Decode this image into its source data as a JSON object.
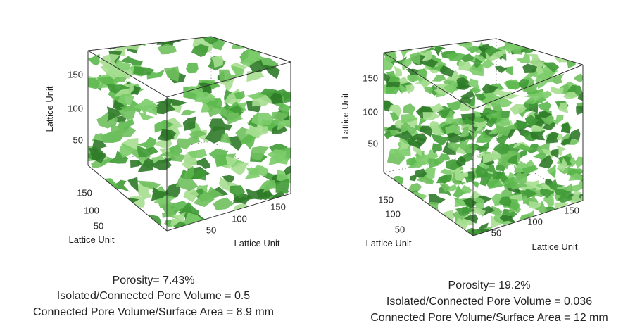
{
  "panels": [
    {
      "z_ticks": [
        150,
        100,
        50
      ],
      "z_label": "Lattice Unit",
      "left_ticks": [
        150,
        100,
        50
      ],
      "left_label": "Lattice Unit",
      "right_ticks": [
        50,
        100,
        150
      ],
      "right_label": "Lattice Unit",
      "caption": [
        "Porosity= 7.43%",
        "Isolated/Connected Pore Volume = 0.5",
        "Connected Pore Volume/Surface Area = 8.9 mm"
      ]
    },
    {
      "z_ticks": [
        150,
        100,
        50
      ],
      "z_label": "Lattice Unit",
      "left_ticks": [
        150,
        100,
        50
      ],
      "left_label": "Lattice Unit",
      "right_ticks": [
        50,
        100,
        150
      ],
      "right_label": "Lattice Unit",
      "caption": [
        "Porosity= 19.2%",
        "Isolated/Connected Pore Volume = 0.036",
        "Connected Pore Volume/Surface Area = 12  mm"
      ]
    }
  ]
}
